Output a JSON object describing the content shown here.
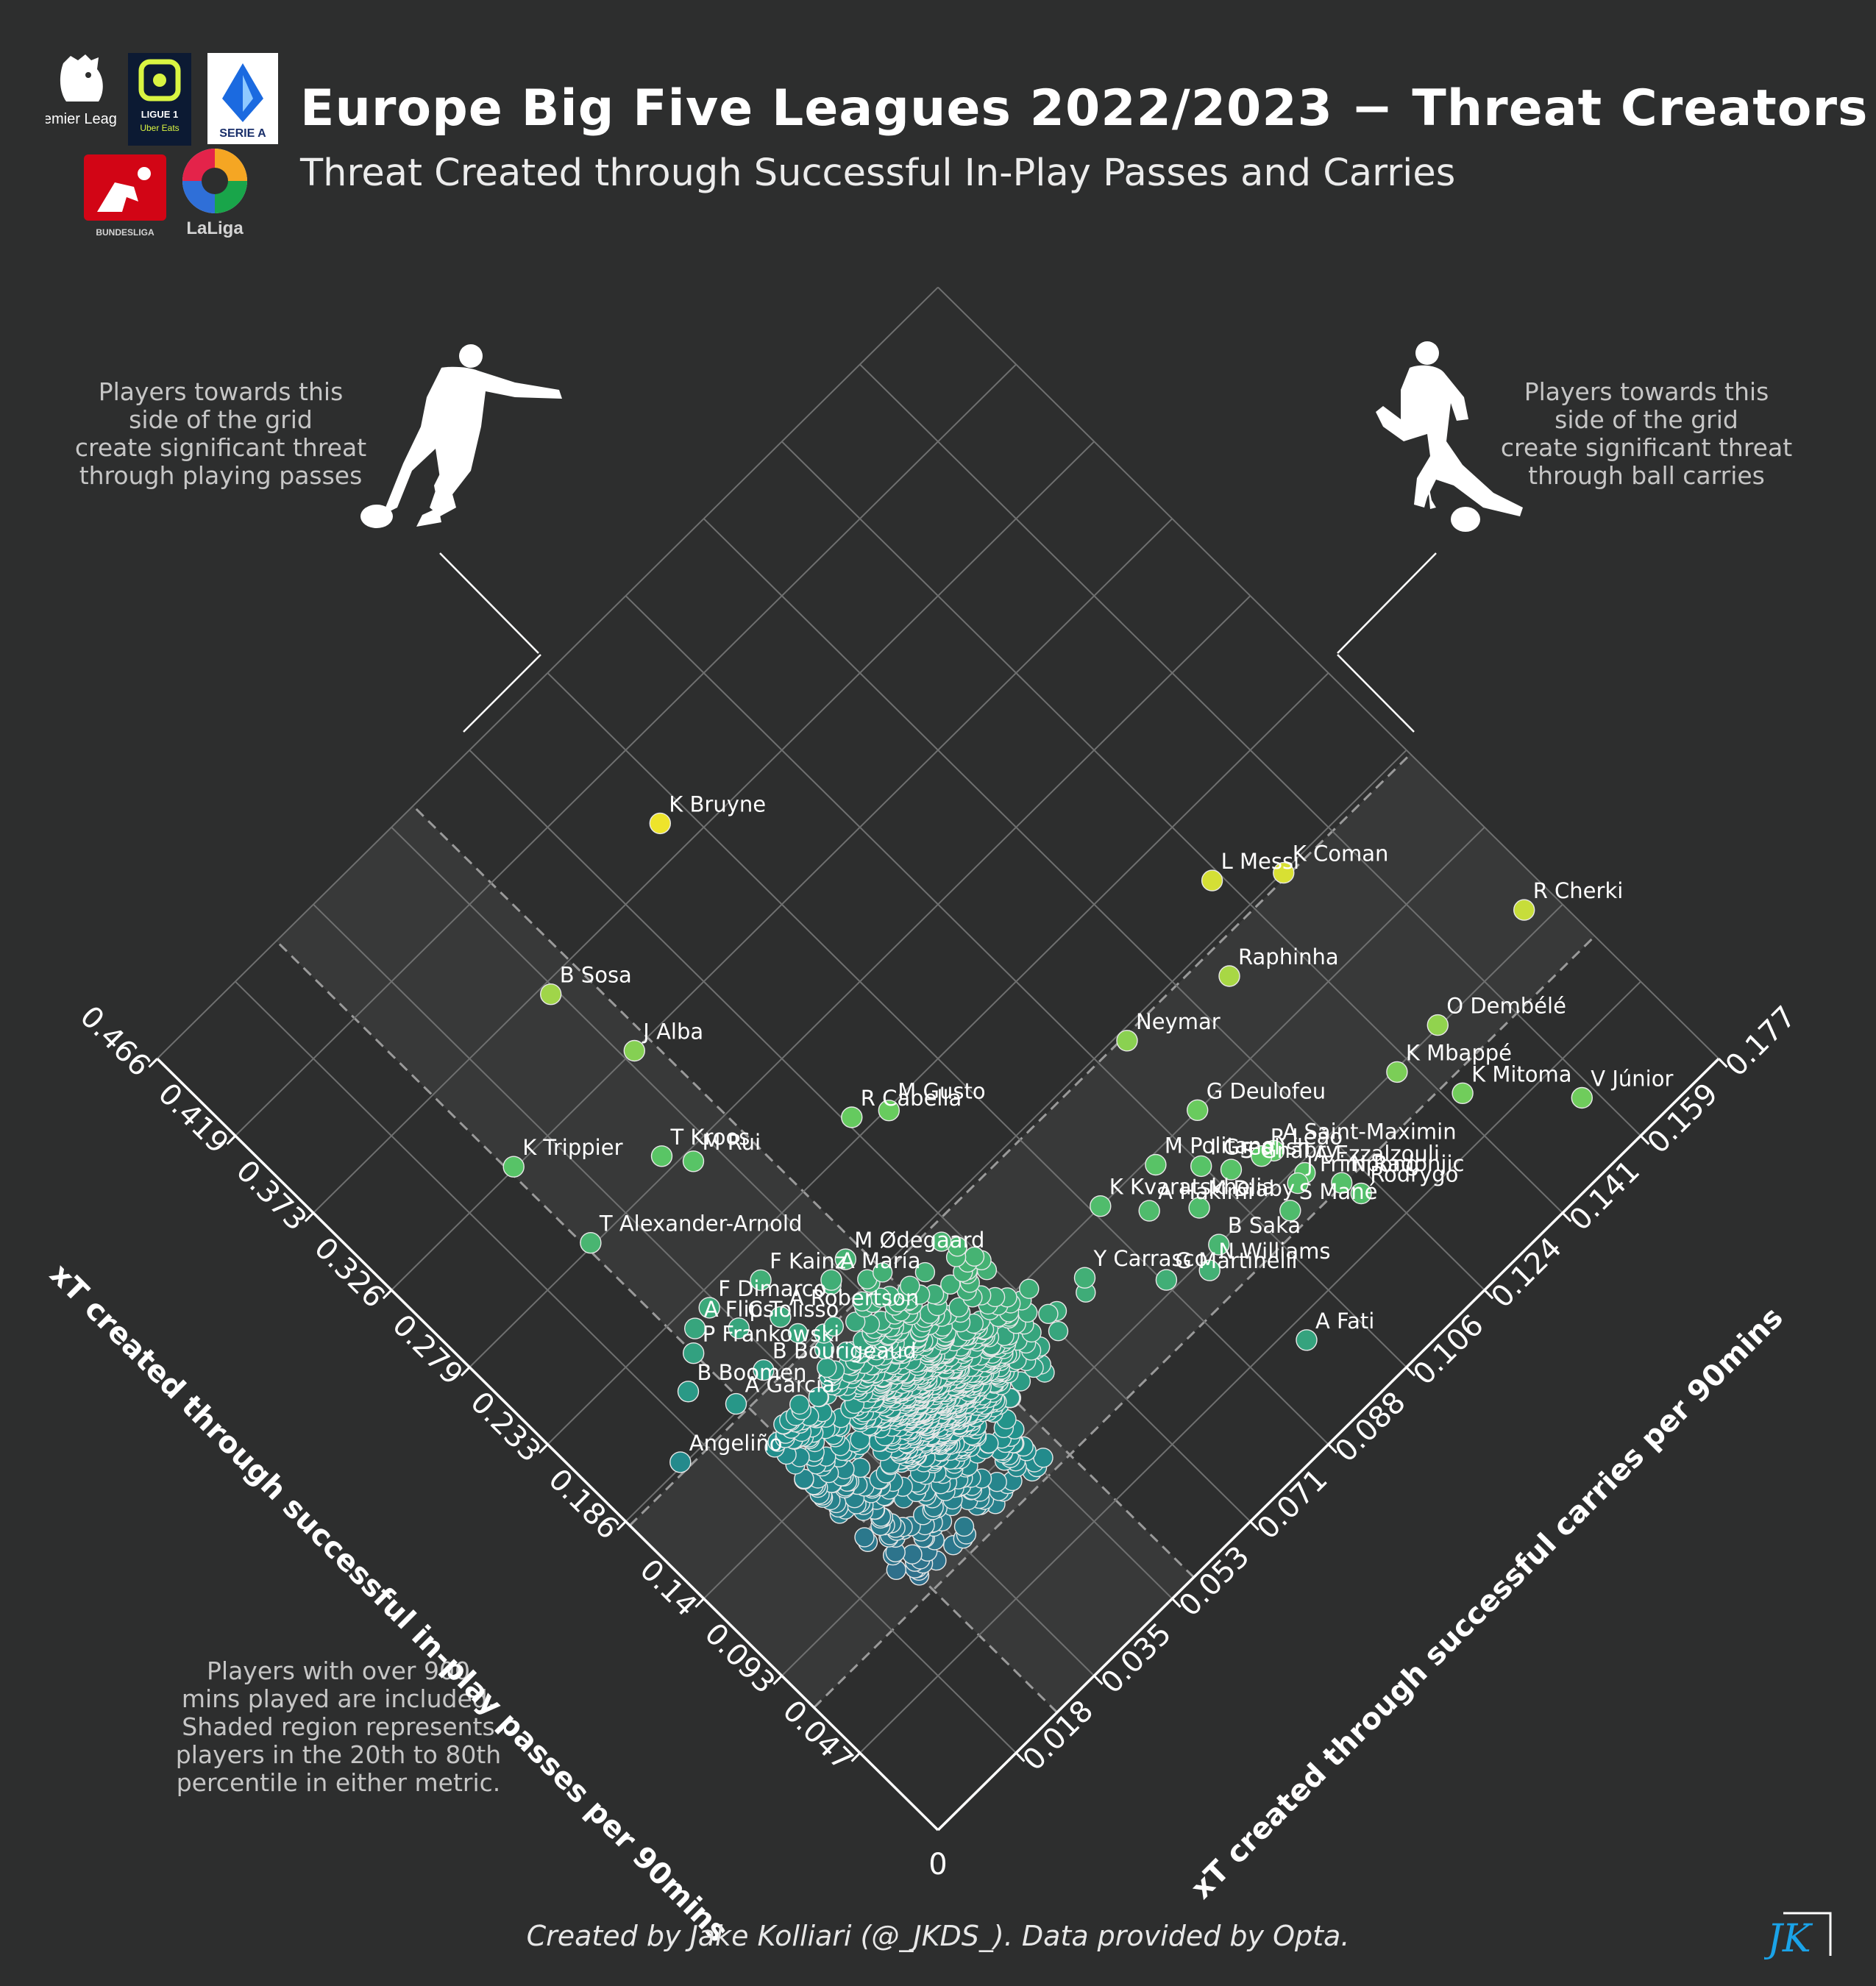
{
  "header": {
    "title": "Europe Big Five Leagues 2022/2023 − Threat Creators",
    "subtitle": "Threat Created through Successful In-Play Passes and Carries"
  },
  "logos": {
    "premier_league": "Premier League",
    "ligue1": "LIGUE 1",
    "ligue1_sponsor": "Uber Eats",
    "serie_a": "SERIE A",
    "bundesliga": "BUNDESLIGA",
    "laliga": "LaLiga"
  },
  "notes": {
    "passes_side": "Players towards this\nside of the grid\ncreate significant threat\nthrough playing passes",
    "carries_side": "Players towards this\nside of the grid\ncreate significant threat\nthrough ball carries",
    "inclusion": "Players with over 900\nmins played are included.\nShaded region represents\nplayers in the 20th to 80th\npercentile in either metric."
  },
  "credit": "Created by Jake Kolliari (@_JKDS_). Data provided by Opta.",
  "watermark": "JK",
  "colors": {
    "background": "#2d2e2e",
    "grid": "#6f7070",
    "axis": "#ffffff",
    "colormap": [
      "#440154",
      "#3b528b",
      "#21918c",
      "#5ec962",
      "#fde725"
    ]
  },
  "chart_data": {
    "type": "scatter",
    "xlabel": "xT created through successful in-play passes per 90mins",
    "ylabel": "xT created through successful carries per 90mins",
    "origin_label": "0",
    "x_ticks": [
      "0.047",
      "0.093",
      "0.14",
      "0.186",
      "0.233",
      "0.279",
      "0.326",
      "0.373",
      "0.419",
      "0.466"
    ],
    "y_ticks": [
      "0.018",
      "0.035",
      "0.053",
      "0.071",
      "0.088",
      "0.106",
      "0.124",
      "0.141",
      "0.159",
      "0.177"
    ],
    "x_range": [
      0,
      0.466
    ],
    "y_range": [
      0,
      0.177
    ],
    "shaded_percentile_band": {
      "x": [
        0.074,
        0.184
      ],
      "y": [
        0.027,
        0.058
      ]
    },
    "labeled_players": [
      {
        "name": "R Cherki",
        "passes": 0.103,
        "carries": 0.172
      },
      {
        "name": "K Coman",
        "passes": 0.186,
        "carries": 0.149
      },
      {
        "name": "L Messi",
        "passes": 0.205,
        "carries": 0.14
      },
      {
        "name": "K Bruyne",
        "passes": 0.387,
        "carries": 0.084
      },
      {
        "name": "Raphinha",
        "passes": 0.171,
        "carries": 0.131
      },
      {
        "name": "O Dembélé",
        "passes": 0.094,
        "carries": 0.149
      },
      {
        "name": "K Mbappé",
        "passes": 0.092,
        "carries": 0.139
      },
      {
        "name": "K Mitoma",
        "passes": 0.066,
        "carries": 0.144
      },
      {
        "name": "V Júnior",
        "passes": 0.029,
        "carries": 0.157
      },
      {
        "name": "Neymar",
        "passes": 0.182,
        "carries": 0.112
      },
      {
        "name": "B Sosa",
        "passes": 0.368,
        "carries": 0.052
      },
      {
        "name": "J Alba",
        "passes": 0.326,
        "carries": 0.055
      },
      {
        "name": "G Deulofeu",
        "passes": 0.14,
        "carries": 0.112
      },
      {
        "name": "A Saint-Maximin",
        "passes": 0.105,
        "carries": 0.116
      },
      {
        "name": "I Grealish",
        "passes": 0.122,
        "carries": 0.106
      },
      {
        "name": "R Leão",
        "passes": 0.107,
        "carries": 0.114
      },
      {
        "name": "N Radonjic",
        "passes": 0.075,
        "carries": 0.12
      },
      {
        "name": "M Politano",
        "passes": 0.136,
        "carries": 0.101
      },
      {
        "name": "S Gnabry",
        "passes": 0.112,
        "carries": 0.109
      },
      {
        "name": "A Ezzalzouli",
        "passes": 0.089,
        "carries": 0.117
      },
      {
        "name": "A Hakimi",
        "passes": 0.124,
        "carries": 0.095
      },
      {
        "name": "M Diaby",
        "passes": 0.11,
        "carries": 0.101
      },
      {
        "name": "Rodrygo",
        "passes": 0.066,
        "carries": 0.121
      },
      {
        "name": "R Cabella",
        "passes": 0.241,
        "carries": 0.072
      },
      {
        "name": "M Gusto",
        "passes": 0.232,
        "carries": 0.077
      },
      {
        "name": "K Kvaratskhelia",
        "passes": 0.14,
        "carries": 0.09
      },
      {
        "name": "J Frimpong",
        "passes": 0.088,
        "carries": 0.115
      },
      {
        "name": "S Mané",
        "passes": 0.082,
        "carries": 0.111
      },
      {
        "name": "T Kroos",
        "passes": 0.286,
        "carries": 0.046
      },
      {
        "name": "M Rui",
        "passes": 0.275,
        "carries": 0.049
      },
      {
        "name": "B Saka",
        "passes": 0.093,
        "carries": 0.099
      },
      {
        "name": "Y Carrasco",
        "passes": 0.123,
        "carries": 0.08
      },
      {
        "name": "M Ødegaard",
        "passes": 0.2,
        "carries": 0.055
      },
      {
        "name": "G Martinelli",
        "passes": 0.098,
        "carries": 0.089
      },
      {
        "name": "N Williams",
        "passes": 0.088,
        "carries": 0.095
      },
      {
        "name": "K Trippier",
        "passes": 0.327,
        "carries": 0.028
      },
      {
        "name": "A María",
        "passes": 0.198,
        "carries": 0.051
      },
      {
        "name": "F Kainz",
        "passes": 0.219,
        "carries": 0.043
      },
      {
        "name": "T Alexander-Arnold",
        "passes": 0.281,
        "carries": 0.028
      },
      {
        "name": "A Robertson",
        "passes": 0.202,
        "carries": 0.041
      },
      {
        "name": "F Dimarco",
        "passes": 0.226,
        "carries": 0.034
      },
      {
        "name": "C Tolisso",
        "passes": 0.211,
        "carries": 0.035
      },
      {
        "name": "A Flips",
        "passes": 0.224,
        "carries": 0.03
      },
      {
        "name": "A Fati",
        "passes": 0.038,
        "carries": 0.098
      },
      {
        "name": "P Frankowski",
        "passes": 0.217,
        "carries": 0.027
      },
      {
        "name": "B Bourigeaud",
        "passes": 0.191,
        "carries": 0.033
      },
      {
        "name": "B Boomen",
        "passes": 0.207,
        "carries": 0.022
      },
      {
        "name": "A García",
        "passes": 0.189,
        "carries": 0.026
      },
      {
        "name": "Angeliño",
        "passes": 0.188,
        "carries": 0.013
      }
    ],
    "unlabeled_player_count": 1100
  }
}
